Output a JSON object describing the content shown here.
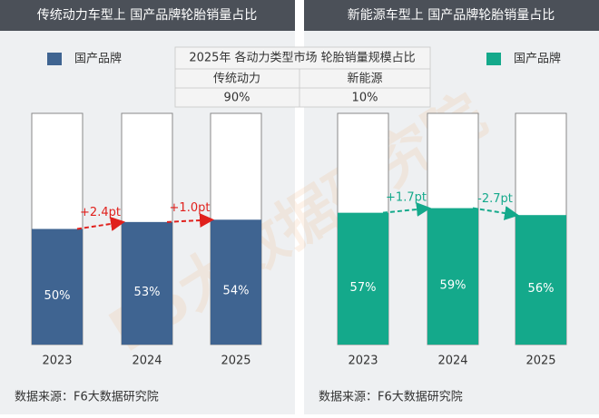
{
  "chart_data": [
    {
      "type": "bar",
      "title": "传统动力车型上 国产品牌轮胎销量占比",
      "categories": [
        "2023",
        "2024",
        "2025"
      ],
      "series": [
        {
          "name": "国产品牌",
          "color": "#3f6491",
          "values": [
            50,
            53,
            54
          ],
          "value_labels": [
            "50%",
            "53%",
            "54%"
          ]
        }
      ],
      "ylim": [
        0,
        100
      ],
      "annotations": [
        "+2.4pt",
        "+1.0pt"
      ],
      "annotation_color": "#e0201c",
      "source": "数据来源：F6大数据研究院"
    },
    {
      "type": "bar",
      "title": "新能源车型上 国产品牌轮胎销量占比",
      "categories": [
        "2023",
        "2024",
        "2025"
      ],
      "series": [
        {
          "name": "国产品牌",
          "color": "#14a98b",
          "values": [
            57,
            59,
            56
          ],
          "value_labels": [
            "57%",
            "59%",
            "56%"
          ]
        }
      ],
      "ylim": [
        0,
        100
      ],
      "annotations": [
        "+1.7pt",
        "-2.7pt"
      ],
      "annotation_color": "#14a98b",
      "source": "数据来源：F6大数据研究院"
    }
  ],
  "table": {
    "title": "2025年 各动力类型市场 轮胎销量规模占比",
    "header": [
      "传统动力",
      "新能源"
    ],
    "rows": [
      [
        "90%",
        "10%"
      ]
    ]
  },
  "watermark": "F6大数据研究院"
}
